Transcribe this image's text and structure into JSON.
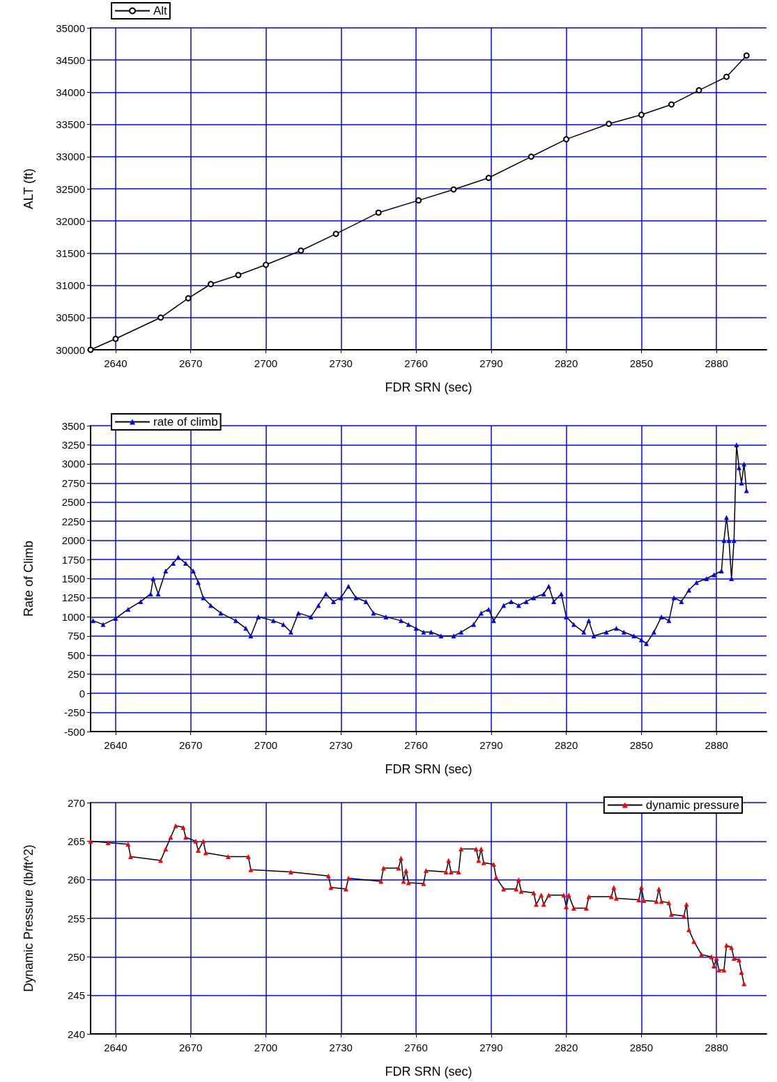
{
  "chart_data": [
    {
      "type": "line",
      "xlabel": "FDR SRN (sec)",
      "ylabel": "ALT (ft)",
      "xlim": [
        2630,
        2900
      ],
      "xticks": [
        2640,
        2670,
        2700,
        2730,
        2760,
        2790,
        2820,
        2850,
        2880
      ],
      "ylim": [
        30000,
        35000
      ],
      "yticks": [
        30000,
        30500,
        31000,
        31500,
        32000,
        32500,
        33000,
        33500,
        34000,
        34500,
        35000
      ],
      "grid": true,
      "legend": "top left",
      "marker": "circle",
      "series": [
        {
          "name": "Alt",
          "color": "#000000",
          "x": [
            2630,
            2640,
            2658,
            2669,
            2678,
            2689,
            2700,
            2714,
            2728,
            2745,
            2761,
            2775,
            2789,
            2806,
            2820,
            2837,
            2850,
            2862,
            2873,
            2884,
            2892
          ],
          "values": [
            30000,
            30170,
            30500,
            30800,
            31020,
            31160,
            31320,
            31540,
            31800,
            32130,
            32320,
            32490,
            32670,
            33000,
            33270,
            33510,
            33650,
            33810,
            34030,
            34240,
            34570
          ]
        }
      ]
    },
    {
      "type": "line",
      "xlabel": "FDR SRN (sec)",
      "ylabel": "Rate of Climb",
      "xlim": [
        2630,
        2900
      ],
      "xticks": [
        2640,
        2670,
        2700,
        2730,
        2760,
        2790,
        2820,
        2850,
        2880
      ],
      "ylim": [
        -500,
        3500
      ],
      "yticks": [
        -500,
        -250,
        0,
        250,
        500,
        750,
        1000,
        1250,
        1500,
        1750,
        2000,
        2250,
        2500,
        2750,
        3000,
        3250,
        3500
      ],
      "grid": true,
      "legend": "top left",
      "marker": "triangle",
      "series": [
        {
          "name": "rate of climb",
          "color": "#0000ff",
          "x": [
            2631,
            2635,
            2640,
            2645,
            2650,
            2654,
            2655,
            2657,
            2660,
            2663,
            2665,
            2668,
            2671,
            2673,
            2675,
            2678,
            2682,
            2688,
            2692,
            2694,
            2697,
            2703,
            2707,
            2710,
            2713,
            2718,
            2721,
            2724,
            2727,
            2730,
            2733,
            2736,
            2740,
            2743,
            2748,
            2754,
            2757,
            2760,
            2763,
            2766,
            2770,
            2775,
            2778,
            2783,
            2786,
            2789,
            2791,
            2795,
            2798,
            2801,
            2804,
            2807,
            2811,
            2813,
            2815,
            2818,
            2820,
            2823,
            2827,
            2829,
            2831,
            2836,
            2840,
            2843,
            2847,
            2850,
            2852,
            2855,
            2858,
            2861,
            2863,
            2866,
            2869,
            2872,
            2876,
            2879,
            2882,
            2883,
            2884,
            2885,
            2886,
            2887,
            2888,
            2889,
            2890,
            2891,
            2892
          ],
          "values": [
            950,
            900,
            980,
            1100,
            1200,
            1300,
            1500,
            1300,
            1600,
            1700,
            1780,
            1700,
            1600,
            1450,
            1250,
            1150,
            1050,
            950,
            850,
            750,
            1000,
            950,
            900,
            800,
            1050,
            1000,
            1150,
            1300,
            1200,
            1250,
            1400,
            1250,
            1200,
            1050,
            1000,
            950,
            900,
            850,
            800,
            800,
            750,
            750,
            800,
            900,
            1050,
            1100,
            950,
            1150,
            1200,
            1150,
            1200,
            1250,
            1300,
            1400,
            1200,
            1300,
            1000,
            900,
            800,
            950,
            750,
            800,
            850,
            800,
            750,
            700,
            650,
            800,
            1000,
            950,
            1250,
            1200,
            1350,
            1450,
            1500,
            1550,
            1600,
            2000,
            2300,
            2000,
            1500,
            2000,
            3250,
            2950,
            2750,
            3000,
            2650
          ]
        }
      ]
    },
    {
      "type": "line",
      "xlabel": "FDR SRN (sec)",
      "ylabel": "Dynamic Pressure (lb/ft^2)",
      "xlim": [
        2630,
        2900
      ],
      "xticks": [
        2640,
        2670,
        2700,
        2730,
        2760,
        2790,
        2820,
        2850,
        2880
      ],
      "ylim": [
        240,
        270
      ],
      "yticks": [
        240,
        245,
        250,
        255,
        260,
        265,
        270
      ],
      "grid": true,
      "legend": "top right",
      "marker": "triangle",
      "series": [
        {
          "name": "dynamic pressure",
          "color": "#ff0000",
          "x": [
            2630,
            2637,
            2645,
            2646,
            2658,
            2660,
            2662,
            2664,
            2667,
            2668,
            2672,
            2673,
            2675,
            2676,
            2685,
            2693,
            2694,
            2710,
            2725,
            2726,
            2732,
            2733,
            2746,
            2747,
            2753,
            2754,
            2755,
            2756,
            2757,
            2763,
            2764,
            2772,
            2773,
            2774,
            2777,
            2778,
            2784,
            2785,
            2786,
            2787,
            2791,
            2792,
            2795,
            2800,
            2801,
            2802,
            2807,
            2808,
            2810,
            2811,
            2813,
            2819,
            2820,
            2821,
            2823,
            2828,
            2829,
            2838,
            2839,
            2840,
            2849,
            2850,
            2851,
            2856,
            2857,
            2858,
            2861,
            2862,
            2867,
            2868,
            2869,
            2871,
            2874,
            2878,
            2879,
            2880,
            2881,
            2883,
            2884,
            2886,
            2887,
            2889,
            2890,
            2891
          ],
          "values": [
            265,
            264.8,
            264.6,
            263,
            262.5,
            264,
            265.5,
            267,
            266.8,
            265.5,
            265,
            263.8,
            265,
            263.5,
            263,
            263,
            261.3,
            261,
            260.5,
            259,
            258.8,
            260.2,
            259.8,
            261.5,
            261.5,
            262.8,
            259.8,
            261.2,
            259.6,
            259.5,
            261.2,
            261,
            262.5,
            261,
            261,
            264,
            264,
            262.5,
            264,
            262.2,
            262,
            260.3,
            258.8,
            258.8,
            260,
            258.5,
            258.3,
            256.8,
            258,
            256.8,
            258,
            258,
            256.5,
            258,
            256.3,
            256.3,
            257.8,
            257.8,
            259,
            257.6,
            257.4,
            259,
            257.3,
            257.2,
            258.8,
            257.2,
            257,
            255.5,
            255.3,
            256.8,
            253.5,
            252,
            250.3,
            250,
            248.8,
            249.8,
            248.3,
            248.3,
            251.5,
            251.2,
            249.8,
            249.6,
            248,
            246.5
          ]
        }
      ]
    }
  ]
}
